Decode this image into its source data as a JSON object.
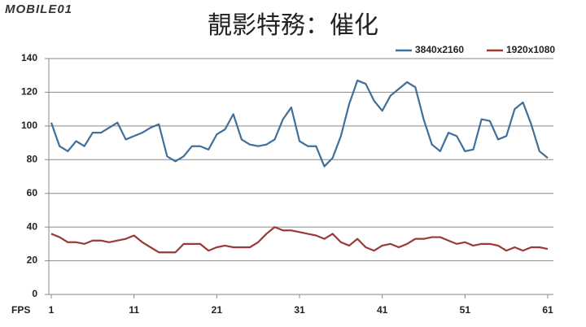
{
  "watermark": "MOBILE01",
  "chart_data": {
    "type": "line",
    "title": "靚影特務：催化",
    "x_label": "FPS",
    "x": [
      1,
      2,
      3,
      4,
      5,
      6,
      7,
      8,
      9,
      10,
      11,
      12,
      13,
      14,
      15,
      16,
      17,
      18,
      19,
      20,
      21,
      22,
      23,
      24,
      25,
      26,
      27,
      28,
      29,
      30,
      31,
      32,
      33,
      34,
      35,
      36,
      37,
      38,
      39,
      40,
      41,
      42,
      43,
      44,
      45,
      46,
      47,
      48,
      49,
      50,
      51,
      52,
      53,
      54,
      55,
      56,
      57,
      58,
      59,
      60,
      61
    ],
    "series": [
      {
        "name": "3840x2160",
        "color": "#3f6f9a",
        "values": [
          102,
          88,
          85,
          91,
          88,
          96,
          96,
          99,
          102,
          92,
          94,
          96,
          99,
          101,
          82,
          79,
          82,
          88,
          88,
          86,
          95,
          98,
          107,
          92,
          89,
          88,
          89,
          92,
          104,
          111,
          91,
          88,
          88,
          76,
          81,
          94,
          113,
          127,
          125,
          115,
          109,
          118,
          122,
          126,
          123,
          104,
          89,
          85,
          96,
          94,
          85,
          86,
          104,
          103,
          92,
          94,
          110,
          114,
          101,
          85,
          81
        ]
      },
      {
        "name": "1920x1080",
        "color": "#9a3a36",
        "values": [
          36,
          34,
          31,
          31,
          30,
          32,
          32,
          31,
          32,
          33,
          35,
          31,
          28,
          25,
          25,
          25,
          30,
          30,
          30,
          26,
          28,
          29,
          28,
          28,
          28,
          31,
          36,
          40,
          38,
          38,
          37,
          36,
          35,
          33,
          36,
          31,
          29,
          33,
          28,
          26,
          29,
          30,
          28,
          30,
          33,
          33,
          34,
          34,
          32,
          30,
          31,
          29,
          30,
          30,
          29,
          26,
          28,
          26,
          28,
          28,
          27
        ]
      }
    ],
    "xlim": [
      1,
      61
    ],
    "xticks": [
      1,
      11,
      21,
      31,
      41,
      51,
      61
    ],
    "ylim": [
      0,
      140
    ],
    "yticks": [
      0,
      20,
      40,
      60,
      80,
      100,
      120,
      140
    ],
    "grid": true,
    "legend": "top-right"
  }
}
